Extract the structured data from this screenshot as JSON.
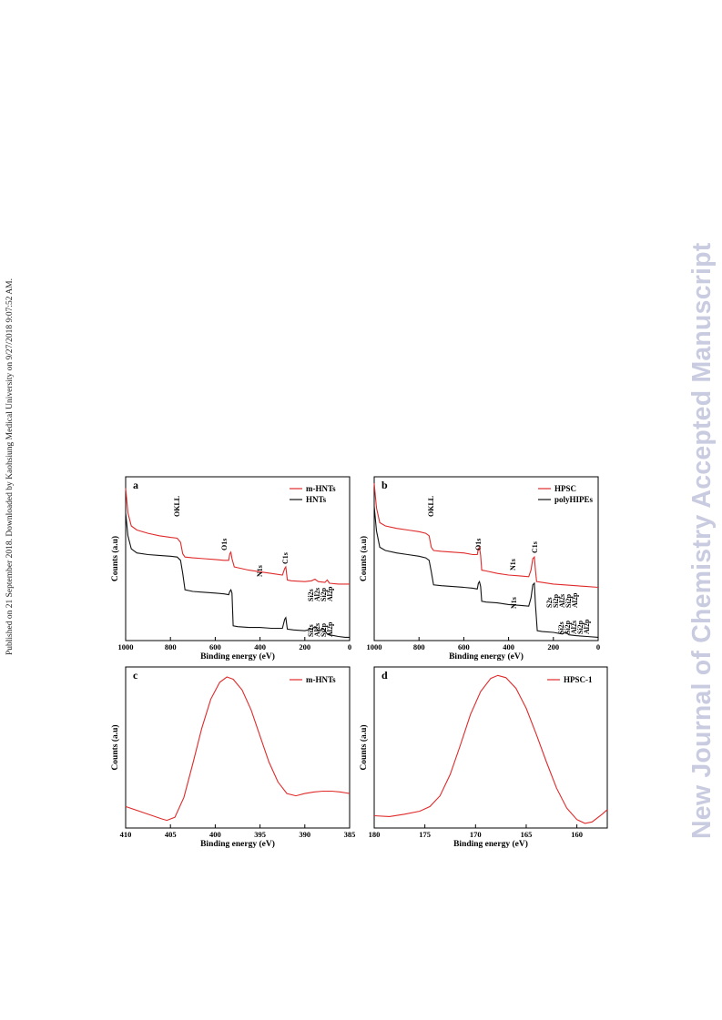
{
  "side_note": "Published on 21 September 2018. Downloaded by Kaohsiung Medical University on 9/27/2018 9:07:52 AM.",
  "watermark": "New Journal of Chemistry Accepted Manuscript",
  "colors": {
    "red": "#e02a2a",
    "black": "#111111"
  },
  "chart_data": [
    {
      "type": "line",
      "panel": "a",
      "xlabel": "Binding energy (eV)",
      "ylabel": "Counts (a.u)",
      "xlim": [
        1000,
        0
      ],
      "xticks": [
        1000,
        800,
        600,
        400,
        200,
        0
      ],
      "legend_position": "top-right",
      "series": [
        {
          "name": "m-HNTs",
          "color": "#e02a2a",
          "points": [
            [
              1000,
              0.93
            ],
            [
              990,
              0.78
            ],
            [
              975,
              0.7
            ],
            [
              950,
              0.675
            ],
            [
              900,
              0.655
            ],
            [
              850,
              0.64
            ],
            [
              800,
              0.63
            ],
            [
              770,
              0.625
            ],
            [
              755,
              0.6
            ],
            [
              745,
              0.53
            ],
            [
              735,
              0.51
            ],
            [
              700,
              0.505
            ],
            [
              650,
              0.5
            ],
            [
              600,
              0.495
            ],
            [
              560,
              0.49
            ],
            [
              540,
              0.49
            ],
            [
              535,
              0.53
            ],
            [
              530,
              0.54
            ],
            [
              525,
              0.5
            ],
            [
              515,
              0.45
            ],
            [
              500,
              0.445
            ],
            [
              450,
              0.43
            ],
            [
              400,
              0.42
            ],
            [
              350,
              0.41
            ],
            [
              300,
              0.4
            ],
            [
              290,
              0.44
            ],
            [
              285,
              0.45
            ],
            [
              278,
              0.37
            ],
            [
              260,
              0.365
            ],
            [
              200,
              0.36
            ],
            [
              170,
              0.365
            ],
            [
              155,
              0.375
            ],
            [
              140,
              0.36
            ],
            [
              110,
              0.355
            ],
            [
              100,
              0.37
            ],
            [
              90,
              0.35
            ],
            [
              50,
              0.345
            ],
            [
              0,
              0.345
            ]
          ]
        },
        {
          "name": "HNTs",
          "color": "#111111",
          "points": [
            [
              1000,
              0.78
            ],
            [
              990,
              0.64
            ],
            [
              975,
              0.56
            ],
            [
              950,
              0.535
            ],
            [
              900,
              0.525
            ],
            [
              850,
              0.52
            ],
            [
              800,
              0.515
            ],
            [
              770,
              0.51
            ],
            [
              755,
              0.49
            ],
            [
              745,
              0.41
            ],
            [
              735,
              0.31
            ],
            [
              700,
              0.3
            ],
            [
              650,
              0.295
            ],
            [
              600,
              0.29
            ],
            [
              560,
              0.285
            ],
            [
              540,
              0.28
            ],
            [
              535,
              0.3
            ],
            [
              530,
              0.31
            ],
            [
              525,
              0.29
            ],
            [
              520,
              0.09
            ],
            [
              500,
              0.085
            ],
            [
              450,
              0.08
            ],
            [
              400,
              0.08
            ],
            [
              350,
              0.075
            ],
            [
              300,
              0.075
            ],
            [
              290,
              0.13
            ],
            [
              285,
              0.14
            ],
            [
              278,
              0.07
            ],
            [
              250,
              0.065
            ],
            [
              200,
              0.06
            ],
            [
              170,
              0.07
            ],
            [
              155,
              0.085
            ],
            [
              140,
              0.06
            ],
            [
              115,
              0.07
            ],
            [
              100,
              0.04
            ],
            [
              90,
              0.035
            ],
            [
              50,
              0.025
            ],
            [
              20,
              0.02
            ],
            [
              0,
              0.02
            ]
          ]
        }
      ],
      "annotations": [
        "OKLL",
        "O1s",
        "N1s",
        "C1s",
        "Si2s",
        "Al2s",
        "Si2p",
        "Al2p",
        "Si2s",
        "Al2s",
        "Si2p",
        "Al2p"
      ]
    },
    {
      "type": "line",
      "panel": "b",
      "xlabel": "Binding energy (eV)",
      "ylabel": "Counts (a.u)",
      "xlim": [
        1000,
        0
      ],
      "xticks": [
        1000,
        800,
        600,
        400,
        200,
        0
      ],
      "legend_position": "top-right",
      "series": [
        {
          "name": "HPSC",
          "color": "#e02a2a",
          "points": [
            [
              1000,
              0.96
            ],
            [
              990,
              0.81
            ],
            [
              975,
              0.72
            ],
            [
              950,
              0.7
            ],
            [
              900,
              0.685
            ],
            [
              850,
              0.675
            ],
            [
              800,
              0.665
            ],
            [
              770,
              0.655
            ],
            [
              755,
              0.64
            ],
            [
              745,
              0.57
            ],
            [
              735,
              0.55
            ],
            [
              700,
              0.545
            ],
            [
              650,
              0.54
            ],
            [
              600,
              0.535
            ],
            [
              560,
              0.525
            ],
            [
              540,
              0.525
            ],
            [
              535,
              0.56
            ],
            [
              530,
              0.57
            ],
            [
              525,
              0.52
            ],
            [
              520,
              0.43
            ],
            [
              500,
              0.425
            ],
            [
              450,
              0.41
            ],
            [
              400,
              0.4
            ],
            [
              350,
              0.395
            ],
            [
              310,
              0.39
            ],
            [
              300,
              0.43
            ],
            [
              292,
              0.5
            ],
            [
              285,
              0.51
            ],
            [
              280,
              0.43
            ],
            [
              275,
              0.36
            ],
            [
              250,
              0.355
            ],
            [
              200,
              0.345
            ],
            [
              150,
              0.34
            ],
            [
              100,
              0.335
            ],
            [
              50,
              0.33
            ],
            [
              0,
              0.325
            ]
          ]
        },
        {
          "name": "polyHIPEs",
          "color": "#111111",
          "points": [
            [
              1000,
              0.82
            ],
            [
              990,
              0.67
            ],
            [
              975,
              0.57
            ],
            [
              950,
              0.55
            ],
            [
              900,
              0.535
            ],
            [
              850,
              0.525
            ],
            [
              800,
              0.515
            ],
            [
              770,
              0.505
            ],
            [
              755,
              0.49
            ],
            [
              745,
              0.42
            ],
            [
              735,
              0.34
            ],
            [
              700,
              0.335
            ],
            [
              650,
              0.33
            ],
            [
              600,
              0.325
            ],
            [
              560,
              0.32
            ],
            [
              540,
              0.315
            ],
            [
              535,
              0.35
            ],
            [
              530,
              0.36
            ],
            [
              525,
              0.33
            ],
            [
              520,
              0.24
            ],
            [
              500,
              0.235
            ],
            [
              450,
              0.23
            ],
            [
              400,
              0.22
            ],
            [
              350,
              0.215
            ],
            [
              310,
              0.21
            ],
            [
              300,
              0.26
            ],
            [
              292,
              0.34
            ],
            [
              285,
              0.35
            ],
            [
              280,
              0.22
            ],
            [
              272,
              0.06
            ],
            [
              250,
              0.055
            ],
            [
              200,
              0.05
            ],
            [
              160,
              0.04
            ],
            [
              145,
              0.05
            ],
            [
              130,
              0.035
            ],
            [
              100,
              0.03
            ],
            [
              50,
              0.025
            ],
            [
              0,
              0.02
            ]
          ]
        }
      ],
      "annotations": [
        "OKLL",
        "O1s",
        "N1s",
        "N1s",
        "C1s",
        "S2s",
        "Si2p",
        "Al2s",
        "Si2p",
        "Al2p",
        "Si2s",
        "Si2p",
        "Al2s",
        "Si2p",
        "Al2p"
      ]
    },
    {
      "type": "line",
      "panel": "c",
      "xlabel": "Binding energy (eV)",
      "ylabel": "Counts (a.u)",
      "xlim": [
        410,
        385
      ],
      "xticks": [
        410,
        405,
        400,
        395,
        390,
        385
      ],
      "legend_position": "top-right",
      "series": [
        {
          "name": "m-HNTs",
          "color": "#e02a2a",
          "points": [
            [
              410,
              0.14
            ],
            [
              408,
              0.1
            ],
            [
              406,
              0.06
            ],
            [
              405.4,
              0.05
            ],
            [
              404.5,
              0.07
            ],
            [
              403.5,
              0.2
            ],
            [
              402.5,
              0.42
            ],
            [
              401.5,
              0.65
            ],
            [
              400.5,
              0.84
            ],
            [
              399.5,
              0.95
            ],
            [
              398.7,
              0.985
            ],
            [
              398,
              0.97
            ],
            [
              397,
              0.9
            ],
            [
              396,
              0.77
            ],
            [
              395,
              0.6
            ],
            [
              394,
              0.43
            ],
            [
              393,
              0.3
            ],
            [
              392,
              0.225
            ],
            [
              391,
              0.21
            ],
            [
              390,
              0.225
            ],
            [
              389,
              0.235
            ],
            [
              388,
              0.24
            ],
            [
              387,
              0.24
            ],
            [
              386,
              0.235
            ],
            [
              385,
              0.225
            ]
          ]
        }
      ]
    },
    {
      "type": "line",
      "panel": "d",
      "xlabel": "Binding energy (eV)",
      "ylabel": "Counts (a.u)",
      "xlim": [
        180,
        157
      ],
      "xticks": [
        180,
        175,
        170,
        165,
        160
      ],
      "legend_position": "top-right",
      "series": [
        {
          "name": "HPSC-1",
          "color": "#e02a2a",
          "points": [
            [
              180,
              0.08
            ],
            [
              178.5,
              0.075
            ],
            [
              177,
              0.09
            ],
            [
              175.5,
              0.11
            ],
            [
              174.5,
              0.14
            ],
            [
              173.5,
              0.21
            ],
            [
              172.5,
              0.35
            ],
            [
              171.5,
              0.54
            ],
            [
              170.5,
              0.74
            ],
            [
              169.5,
              0.89
            ],
            [
              168.5,
              0.975
            ],
            [
              167.8,
              0.995
            ],
            [
              167,
              0.98
            ],
            [
              166,
              0.91
            ],
            [
              165,
              0.78
            ],
            [
              164,
              0.61
            ],
            [
              163,
              0.43
            ],
            [
              162,
              0.26
            ],
            [
              161,
              0.13
            ],
            [
              160,
              0.055
            ],
            [
              159.2,
              0.03
            ],
            [
              158.5,
              0.04
            ],
            [
              157.5,
              0.09
            ],
            [
              157,
              0.12
            ]
          ]
        }
      ]
    }
  ]
}
